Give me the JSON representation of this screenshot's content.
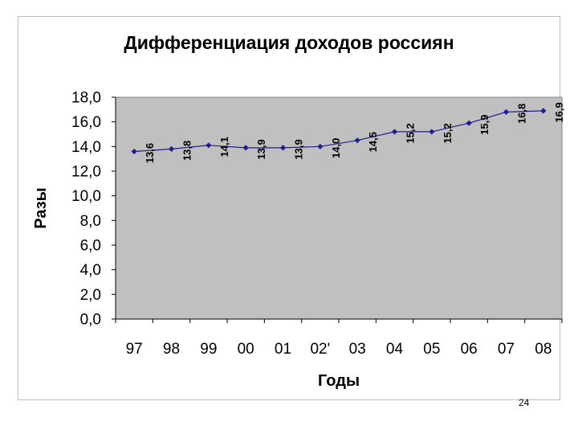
{
  "chart_data": {
    "type": "line",
    "title": "Дифференциация доходов россиян",
    "xlabel": "Годы",
    "ylabel": "Разы",
    "categories": [
      "97",
      "98",
      "99",
      "00",
      "01",
      "02'",
      "03",
      "04",
      "05",
      "06",
      "07",
      "08"
    ],
    "y_ticks": [
      "0,0",
      "2,0",
      "4,0",
      "6,0",
      "8,0",
      "10,0",
      "12,0",
      "14,0",
      "16,0",
      "18,0"
    ],
    "ylim": [
      0,
      18
    ],
    "grid": false,
    "legend": "none",
    "series": [
      {
        "values": [
          13.6,
          13.8,
          14.1,
          13.9,
          13.9,
          14.0,
          14.5,
          15.2,
          15.2,
          15.9,
          16.8,
          16.9
        ],
        "labels": [
          "13,6",
          "13,8",
          "14,1",
          "13,9",
          "13,9",
          "14,0",
          "14,5",
          "15,2",
          "15,2",
          "15,9",
          "16,8",
          "16,9"
        ],
        "color": "#1f1f8f"
      }
    ],
    "plot_background": "#c0c0c0"
  },
  "page_number": "24"
}
